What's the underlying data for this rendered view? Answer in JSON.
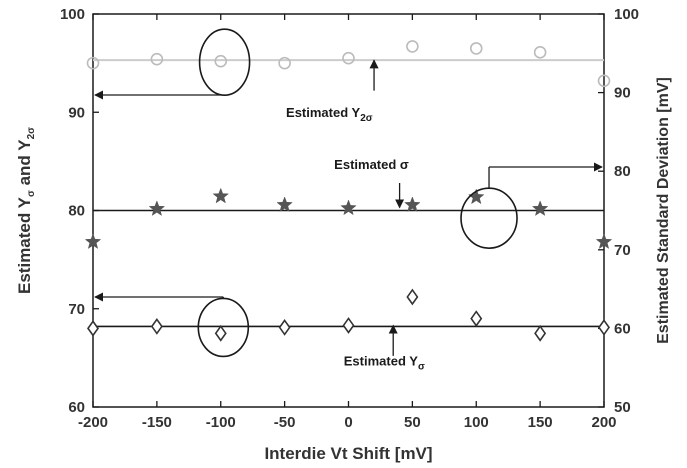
{
  "chart_data": {
    "type": "scatter",
    "xlabel": "Interdie Vt Shift [mV]",
    "ylabel_left": "Estimated Y",
    "ylabel_left_sub1": "σ",
    "ylabel_left_mid": " and Y",
    "ylabel_left_sub2": "2σ",
    "ylabel_right": "Estimated Standard Deviation [mV]",
    "xlim": [
      -200,
      200
    ],
    "ylim_left": [
      60,
      100
    ],
    "ylim_right": [
      50,
      100
    ],
    "x_ticks": [
      "-200",
      "-150",
      "-100",
      "-50",
      "0",
      "50",
      "100",
      "150",
      "200"
    ],
    "y_left_ticks": [
      "60",
      "70",
      "80",
      "90",
      "100"
    ],
    "y_right_ticks": [
      "50",
      "60",
      "70",
      "80",
      "90",
      "100"
    ],
    "x": [
      -200,
      -150,
      -100,
      -50,
      0,
      50,
      100,
      150,
      200
    ],
    "series": [
      {
        "axis": "left",
        "marker": "circle",
        "color": "#bbbbbb",
        "values": [
          95.0,
          95.4,
          95.2,
          95.0,
          95.5,
          96.7,
          96.5,
          96.1,
          93.2
        ],
        "fit": 95.3,
        "fit_color": "#cccccc"
      },
      {
        "axis": "right",
        "marker": "star",
        "color": "#555555",
        "values": [
          71.0,
          75.2,
          76.8,
          75.7,
          75.3,
          75.7,
          76.7,
          75.2,
          71.0
        ],
        "fit": 75.0,
        "fit_color": "#1a1a1a"
      },
      {
        "axis": "left",
        "marker": "diamond",
        "color": "#333333",
        "values": [
          68.0,
          68.2,
          67.5,
          68.1,
          68.3,
          71.2,
          69.0,
          67.5,
          68.1
        ],
        "fit": 68.2,
        "fit_color": "#1a1a1a"
      }
    ],
    "annotations": [
      {
        "name": "estimated-y2sigma",
        "text": "Estimated Y",
        "sub": "2σ",
        "x": -15,
        "y": 89.5,
        "arrow_from": [
          20,
          92.2
        ],
        "arrow_to": [
          20,
          95.3
        ]
      },
      {
        "name": "estimated-sigma",
        "text": "Estimated σ",
        "x": 18,
        "y": 84.2,
        "arrow_from": [
          40,
          82.8
        ],
        "arrow_to": [
          40,
          80.3
        ]
      },
      {
        "name": "estimated-ysigma",
        "text": "Estimated Y",
        "sub": "σ",
        "x": 28,
        "y": 64.2,
        "arrow_from": [
          35,
          65.2
        ],
        "arrow_to": [
          35,
          68.3
        ]
      }
    ],
    "grid": false
  }
}
